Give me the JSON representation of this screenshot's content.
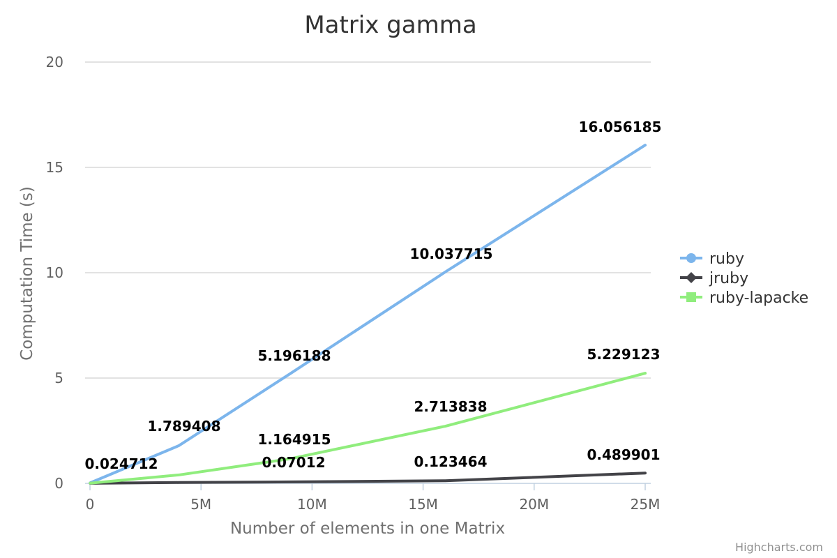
{
  "chart_data": {
    "type": "line",
    "title": "Matrix gamma",
    "xlabel": "Number of elements in one Matrix",
    "ylabel": "Computation Time (s)",
    "xlim": [
      0,
      25000000
    ],
    "ylim": [
      0,
      20
    ],
    "x_ticks": [
      {
        "value": 0,
        "label": "0"
      },
      {
        "value": 5000000,
        "label": "5M"
      },
      {
        "value": 10000000,
        "label": "10M"
      },
      {
        "value": 15000000,
        "label": "15M"
      },
      {
        "value": 20000000,
        "label": "20M"
      },
      {
        "value": 25000000,
        "label": "25M"
      }
    ],
    "y_ticks": [
      {
        "value": 0,
        "label": "0"
      },
      {
        "value": 5,
        "label": "5"
      },
      {
        "value": 10,
        "label": "10"
      },
      {
        "value": 15,
        "label": "15"
      },
      {
        "value": 20,
        "label": "20"
      }
    ],
    "grid": true,
    "legend_position": "right",
    "x": [
      10000,
      4000000,
      9000000,
      16000000,
      25000000
    ],
    "series": [
      {
        "name": "ruby",
        "color": "#7cb5ec",
        "marker": "circle",
        "values": [
          0.024712,
          1.789408,
          5.196188,
          10.037715,
          16.056185
        ],
        "labels": [
          "0.024712",
          "1.789408",
          "5.196188",
          "10.037715",
          "16.056185"
        ]
      },
      {
        "name": "jruby",
        "color": "#434348",
        "marker": "diamond",
        "values": [
          0.003,
          0.04,
          0.07012,
          0.123464,
          0.489901
        ],
        "labels": [
          "",
          "",
          "0.07012",
          "0.123464",
          "0.489901"
        ]
      },
      {
        "name": "ruby-lapacke",
        "color": "#90ed7d",
        "marker": "square",
        "values": [
          0.01,
          0.4,
          1.164915,
          2.713838,
          5.229123
        ],
        "labels": [
          "",
          "",
          "1.164915",
          "2.713838",
          "5.229123"
        ]
      }
    ],
    "credits": "Highcharts.com"
  }
}
